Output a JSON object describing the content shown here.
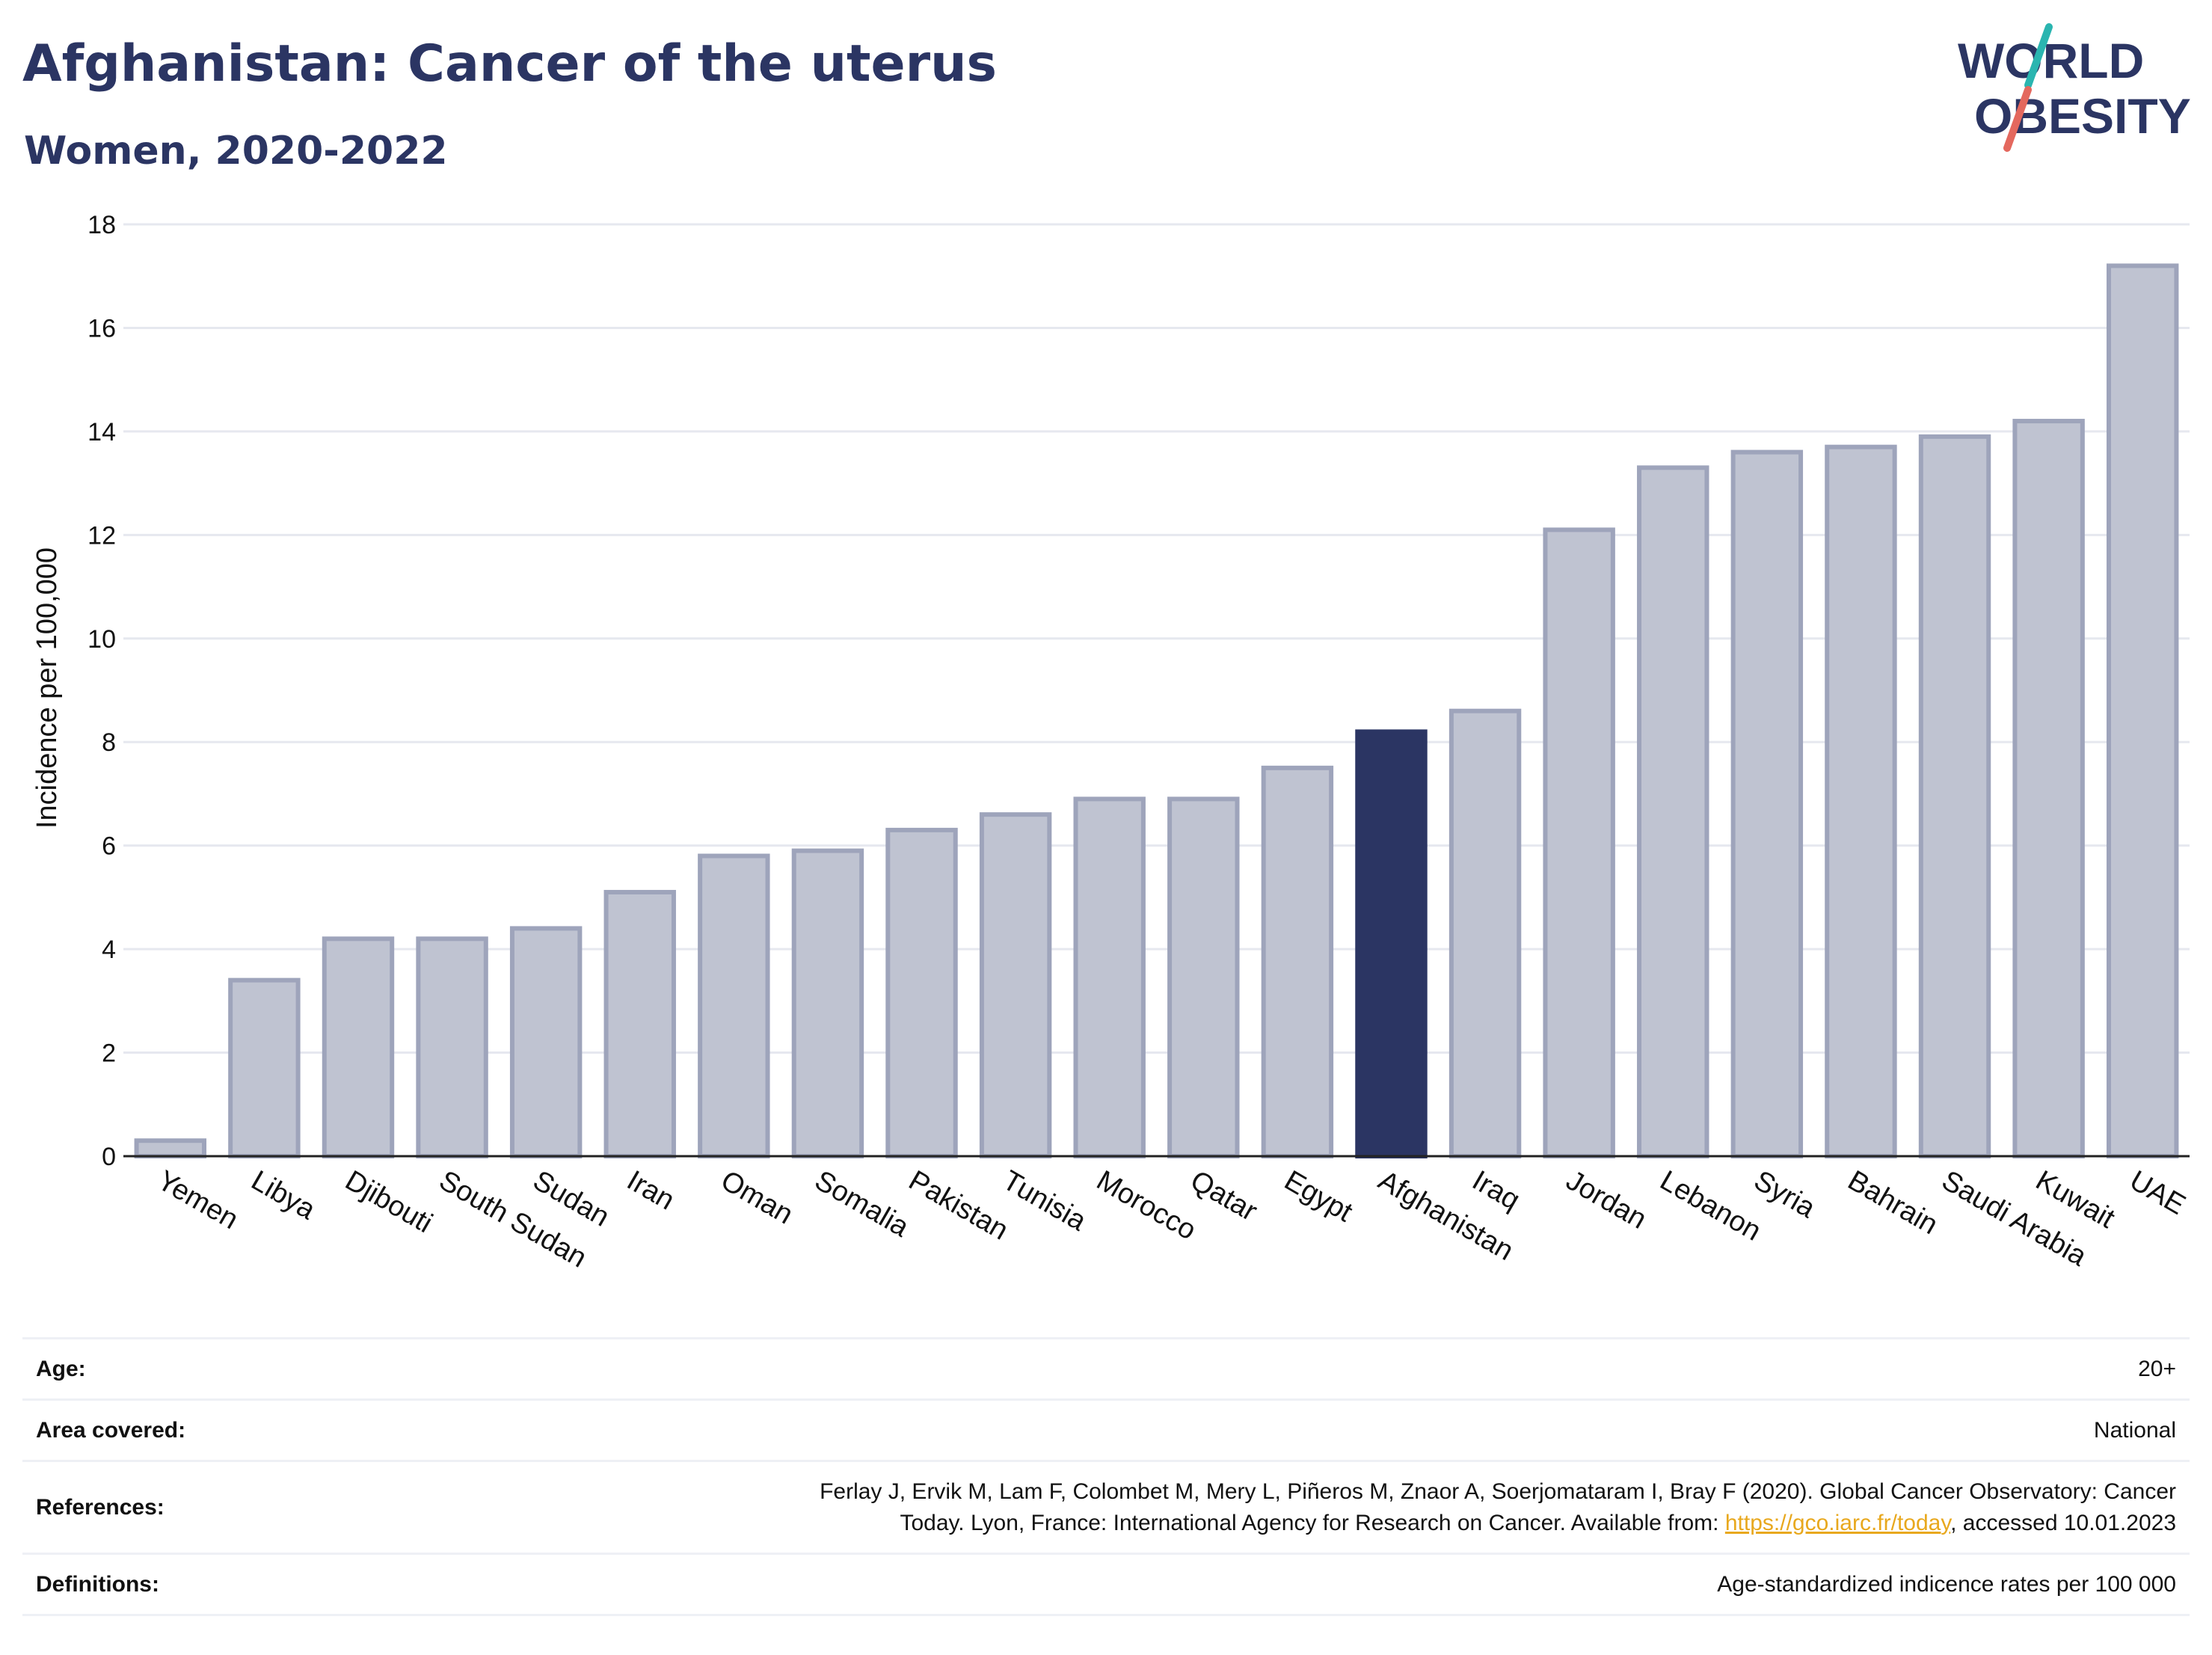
{
  "header": {
    "title": "Afghanistan: Cancer of the uterus",
    "subtitle": "Women, 2020-2022"
  },
  "logo": {
    "line1": "WORLD",
    "line2": "OBESITY",
    "accent_teal": "#2ab5b0",
    "accent_coral": "#e4685e",
    "text_color": "#2b3563"
  },
  "colors": {
    "highlight_bar": "#2b3563",
    "bar_fill": "#bfc3d1",
    "bar_stroke": "#9ea4bb",
    "grid": "#e6e8ef"
  },
  "chart_data": {
    "type": "bar",
    "title": "Afghanistan: Cancer of the uterus",
    "subtitle": "Women, 2020-2022",
    "ylabel": "Incidence per 100,000",
    "xlabel": "",
    "ylim": [
      0,
      18
    ],
    "yticks": [
      "0",
      "2",
      "4",
      "6",
      "8",
      "10",
      "12",
      "14",
      "16",
      "18"
    ],
    "grid": true,
    "highlight": "Afghanistan",
    "categories": [
      "Yemen",
      "Libya",
      "Djibouti",
      "South Sudan",
      "Sudan",
      "Iran",
      "Oman",
      "Somalia",
      "Pakistan",
      "Tunisia",
      "Morocco",
      "Qatar",
      "Egypt",
      "Afghanistan",
      "Iraq",
      "Jordan",
      "Lebanon",
      "Syria",
      "Bahrain",
      "Saudi Arabia",
      "Kuwait",
      "UAE"
    ],
    "values": [
      0.3,
      3.4,
      4.2,
      4.2,
      4.4,
      5.1,
      5.8,
      5.9,
      6.3,
      6.6,
      6.9,
      6.9,
      7.5,
      8.2,
      8.6,
      12.1,
      13.3,
      13.6,
      13.7,
      13.9,
      14.2,
      17.2
    ]
  },
  "meta": {
    "age_label": "Age:",
    "age_value": "20+",
    "area_label": "Area covered:",
    "area_value": "National",
    "references_label": "References:",
    "references_text_1": "Ferlay J, Ervik M, Lam F, Colombet M, Mery L, Piñeros M, Znaor A, Soerjomataram I, Bray F (2020). Global Cancer Observatory: Cancer",
    "references_text_2": "Today. Lyon, France: International Agency for Research on Cancer. Available from: ",
    "references_link": "https://gco.iarc.fr/today",
    "references_text_3": ", accessed 10.01.2023",
    "definitions_label": "Definitions:",
    "definitions_value": "Age-standardized indicence rates per 100 000"
  }
}
